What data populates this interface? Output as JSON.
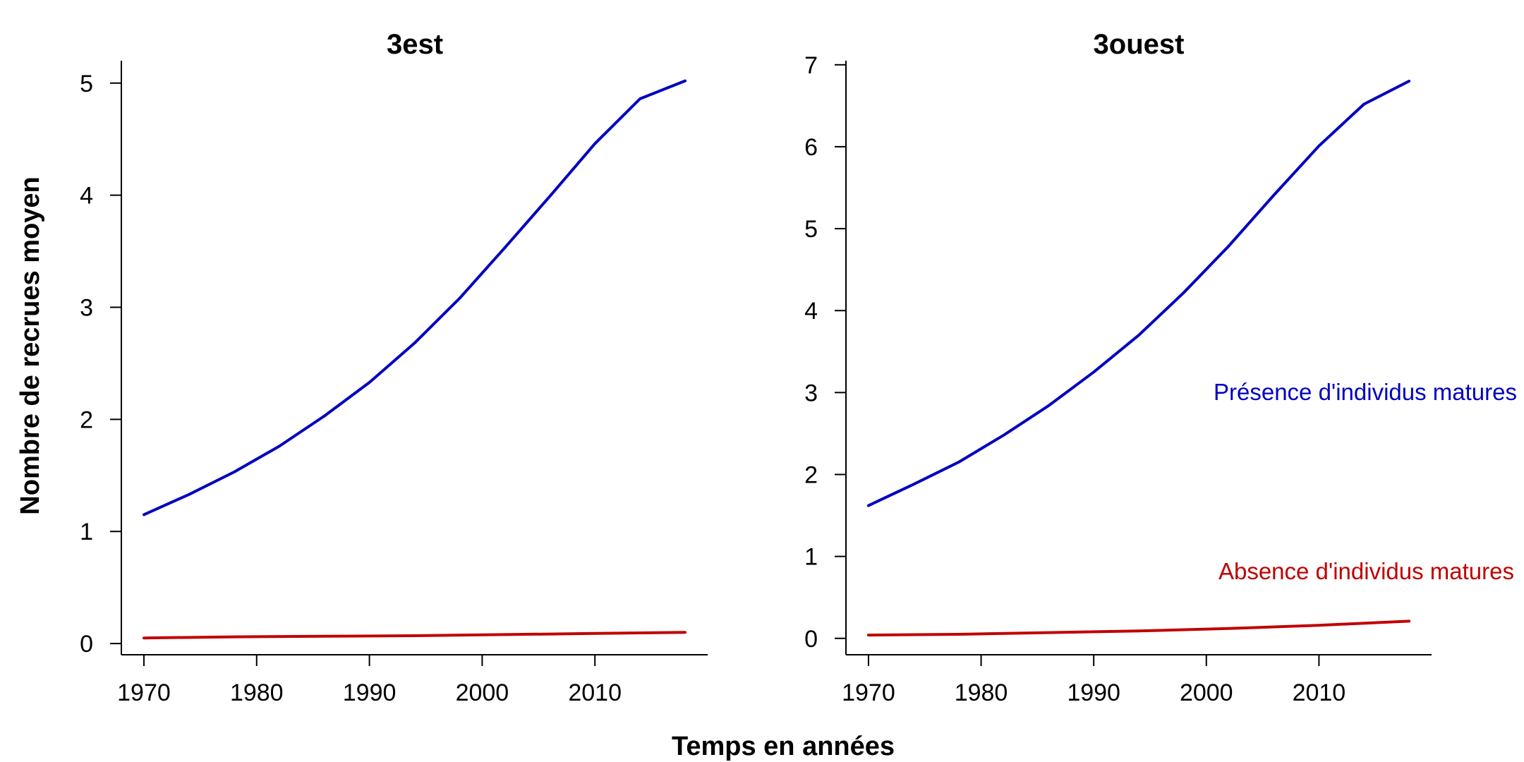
{
  "figure": {
    "xlabel": "Temps en années",
    "ylabel": "Nombre de recrues moyen"
  },
  "chart_data": [
    {
      "type": "line",
      "title": "3est",
      "xlabel": "Temps en années",
      "ylabel": "Nombre de recrues moyen",
      "xlim": [
        1968,
        2020
      ],
      "ylim": [
        -0.1,
        5.2
      ],
      "xticks": [
        1970,
        1980,
        1990,
        2000,
        2010
      ],
      "yticks": [
        0,
        1,
        2,
        3,
        4,
        5
      ],
      "grid": false,
      "series": [
        {
          "color": "#0000c0",
          "x": [
            1970,
            1974,
            1978,
            1982,
            1986,
            1990,
            1994,
            1998,
            2002,
            2006,
            2010,
            2014,
            2018
          ],
          "y": [
            1.15,
            1.33,
            1.53,
            1.76,
            2.03,
            2.33,
            2.68,
            3.08,
            3.53,
            3.99,
            4.46,
            4.86,
            5.02
          ]
        },
        {
          "color": "#c00000",
          "x": [
            1970,
            1978,
            1986,
            1994,
            2002,
            2010,
            2018
          ],
          "y": [
            0.05,
            0.06,
            0.065,
            0.07,
            0.08,
            0.09,
            0.1
          ]
        }
      ]
    },
    {
      "type": "line",
      "title": "3ouest",
      "xlabel": "Temps en années",
      "ylabel": "",
      "xlim": [
        1968,
        2020
      ],
      "ylim": [
        -0.2,
        7.05
      ],
      "xticks": [
        1970,
        1980,
        1990,
        2000,
        2010
      ],
      "yticks": [
        0,
        1,
        2,
        3,
        4,
        5,
        6,
        7
      ],
      "grid": false,
      "series": [
        {
          "name": "Présence d'individus matures",
          "color": "#0000c0",
          "x": [
            1970,
            1974,
            1978,
            1982,
            1986,
            1990,
            1994,
            1998,
            2002,
            2006,
            2010,
            2014,
            2018
          ],
          "y": [
            1.62,
            1.88,
            2.15,
            2.48,
            2.84,
            3.25,
            3.7,
            4.22,
            4.79,
            5.41,
            6.01,
            6.52,
            6.8
          ]
        },
        {
          "name": "Absence d'individus matures",
          "color": "#c00000",
          "x": [
            1970,
            1978,
            1986,
            1994,
            2002,
            2010,
            2018
          ],
          "y": [
            0.04,
            0.05,
            0.07,
            0.09,
            0.12,
            0.16,
            0.21
          ]
        }
      ]
    }
  ]
}
